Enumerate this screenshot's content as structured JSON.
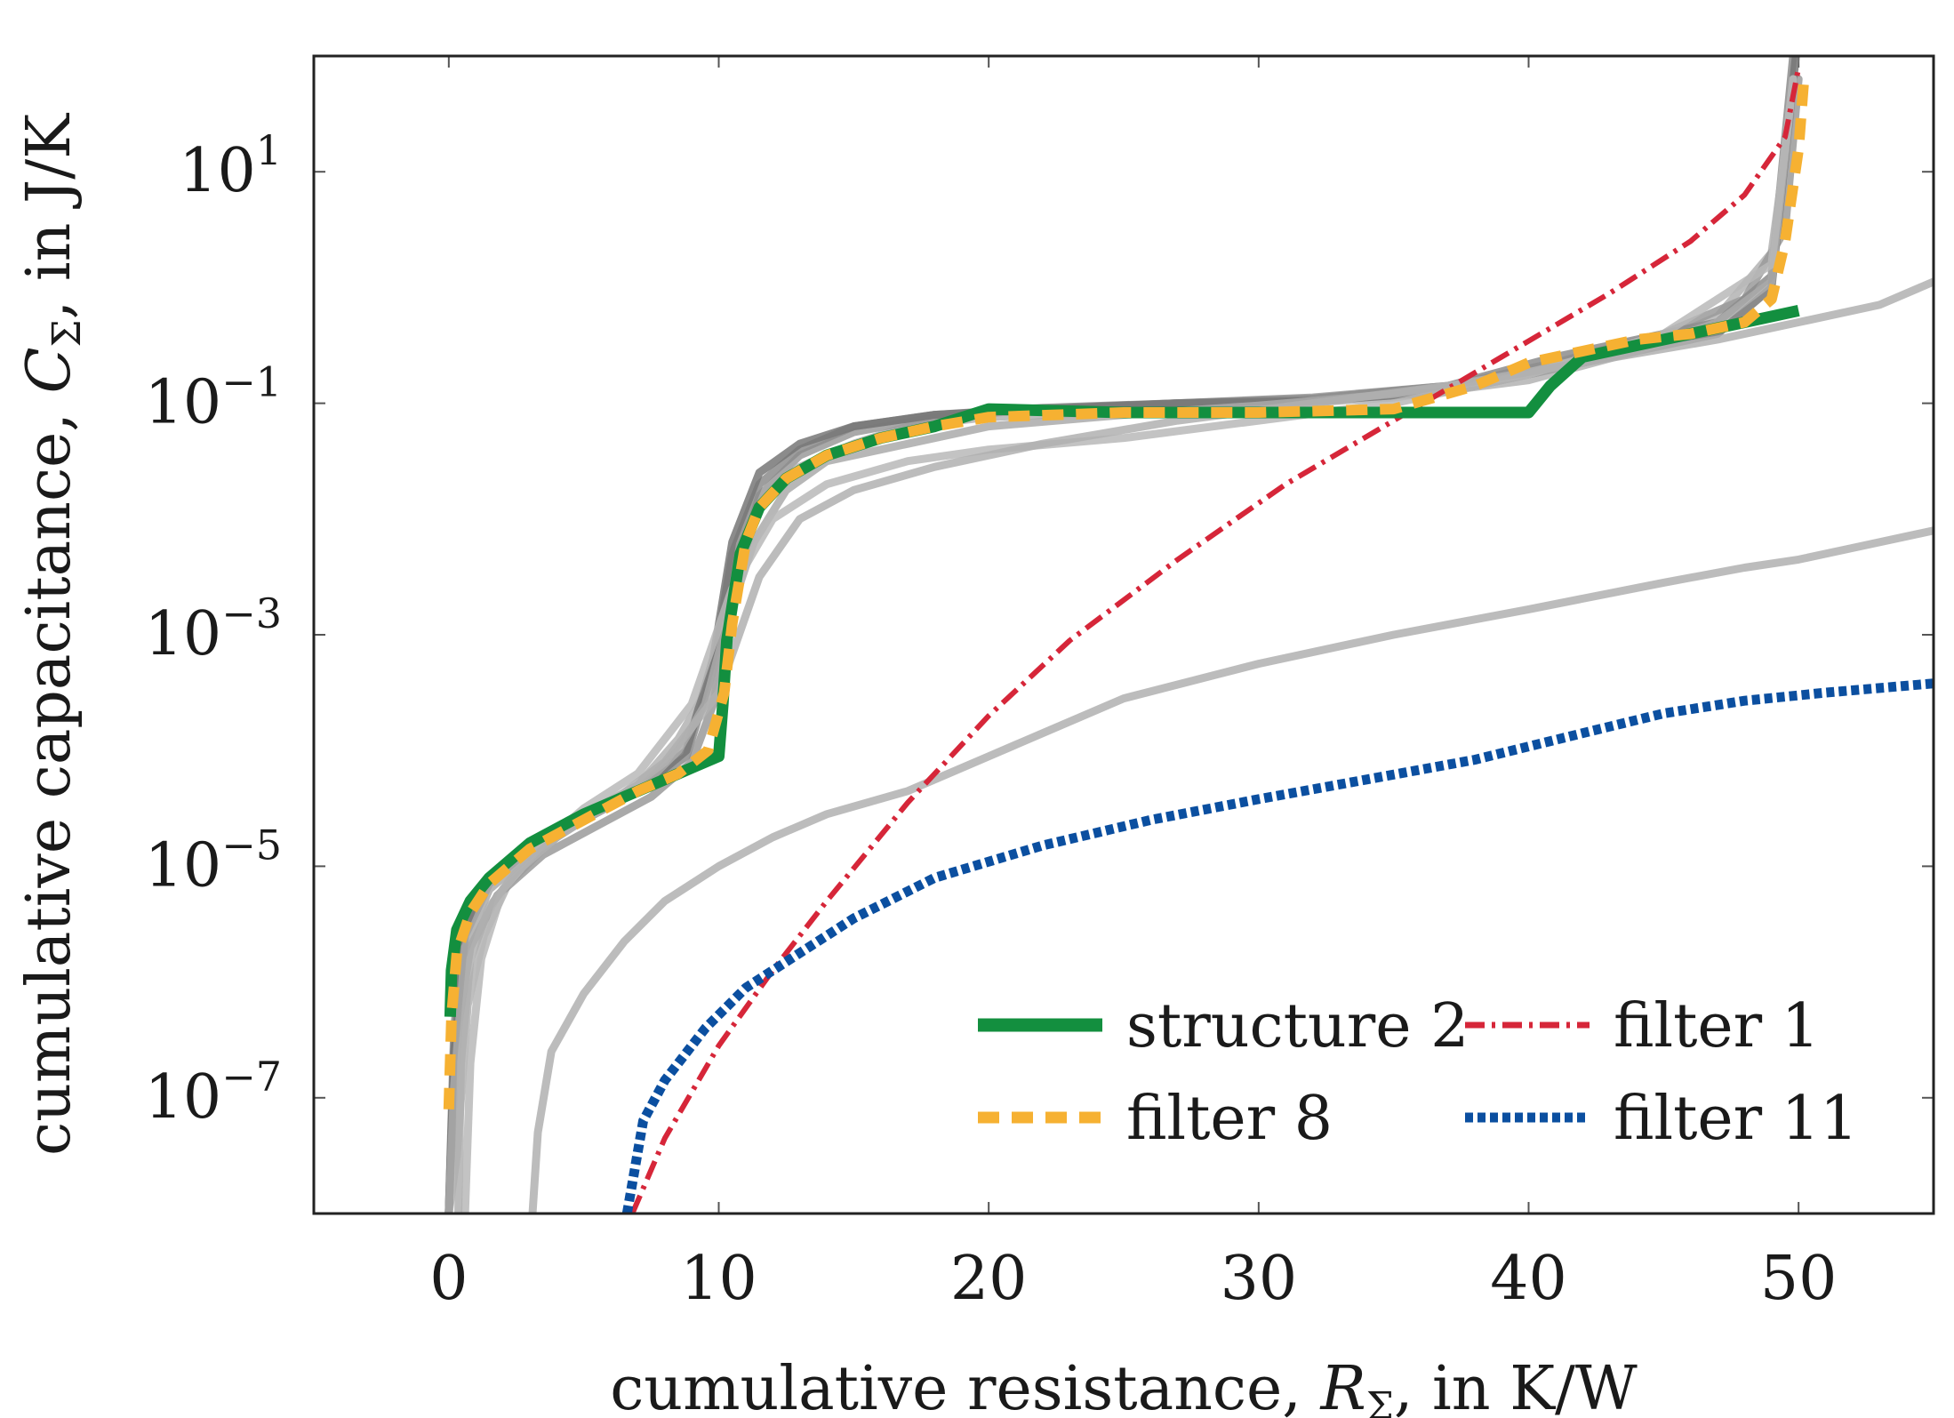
{
  "chart_data": {
    "type": "line",
    "title": "",
    "xlabel": "cumulative resistance, R_Σ, in K/W",
    "ylabel": "cumulative capacitance, C_Σ, in J/K",
    "xlabel_parts": {
      "pre": "cumulative resistance, ",
      "sym": "R",
      "sub": "Σ",
      "post": ", in K/W"
    },
    "ylabel_parts": {
      "pre": "cumulative capacitance, ",
      "sym": "C",
      "sub": "Σ",
      "post": ", in J/K"
    },
    "x_scale": "linear",
    "y_scale": "log",
    "xlim": [
      -5,
      55
    ],
    "ylim_log10": [
      -8,
      2
    ],
    "x_ticks": [
      0,
      10,
      20,
      30,
      40,
      50
    ],
    "x_tick_labels": [
      "0",
      "10",
      "20",
      "30",
      "40",
      "50"
    ],
    "y_ticks_log10": [
      -7,
      -5,
      -3,
      -1,
      1
    ],
    "y_tick_labels": [
      {
        "base": "10",
        "exp": "−7"
      },
      {
        "base": "10",
        "exp": "−5"
      },
      {
        "base": "10",
        "exp": "−3"
      },
      {
        "base": "10",
        "exp": "−1"
      },
      {
        "base": "10",
        "exp": "1"
      }
    ],
    "legend_position": "bottom-right",
    "legend": [
      {
        "label": "structure 2",
        "series": "structure 2"
      },
      {
        "label": "filter 1",
        "series": "filter 1"
      },
      {
        "label": "filter 8",
        "series": "filter 8"
      },
      {
        "label": "filter 11",
        "series": "filter 11"
      }
    ],
    "background_series": [
      {
        "name": "filter ensemble a",
        "color": "#b3b3b3",
        "x": [
          0,
          0.3,
          0.7,
          1.3,
          2.2,
          3.5,
          5,
          7,
          8.5,
          9.5,
          10.5,
          11.5,
          13,
          15,
          17,
          20,
          25,
          30,
          35,
          40,
          44,
          47,
          49,
          49.7
        ],
        "log10_y": [
          -8,
          -7.5,
          -6.2,
          -5.6,
          -5.15,
          -4.85,
          -4.55,
          -4.3,
          -3.9,
          -3.5,
          -2.6,
          -1.9,
          -1.55,
          -1.35,
          -1.2,
          -1.12,
          -1.07,
          -1.02,
          -0.95,
          -0.8,
          -0.55,
          -0.25,
          0.3,
          1.5
        ]
      },
      {
        "name": "filter ensemble b",
        "color": "#9a9a9a",
        "x": [
          0,
          0.2,
          0.8,
          1.8,
          3.5,
          5.5,
          7.5,
          9,
          9.8,
          10.5,
          11.5,
          13,
          15,
          18,
          22,
          27,
          32,
          37,
          41,
          45,
          48,
          49.5,
          50
        ],
        "log10_y": [
          -8,
          -6.6,
          -5.7,
          -5.25,
          -4.9,
          -4.65,
          -4.4,
          -4.1,
          -3.6,
          -2.6,
          -1.8,
          -1.45,
          -1.25,
          -1.12,
          -1.05,
          -1.0,
          -0.95,
          -0.85,
          -0.65,
          -0.4,
          -0.1,
          0.5,
          1.8
        ]
      },
      {
        "name": "filter ensemble c",
        "color": "#8c8c8c",
        "x": [
          0,
          0.2,
          0.6,
          1.5,
          3,
          5,
          7,
          8.8,
          9.8,
          10.5,
          11.5,
          13,
          15,
          18,
          22,
          27,
          32,
          37,
          41,
          44,
          47,
          49,
          49.8
        ],
        "log10_y": [
          -8,
          -6.4,
          -5.55,
          -5.1,
          -4.8,
          -4.55,
          -4.35,
          -4.05,
          -3.3,
          -2.3,
          -1.7,
          -1.4,
          -1.2,
          -1.1,
          -1.04,
          -1.0,
          -0.96,
          -0.85,
          -0.6,
          -0.45,
          -0.3,
          0.1,
          2
        ]
      },
      {
        "name": "filter ensemble d",
        "color": "#777777",
        "x": [
          0,
          0.2,
          0.6,
          1.5,
          3,
          5,
          7,
          8.8,
          9.8,
          10.5,
          11.5,
          13,
          15,
          18,
          22,
          27,
          32,
          37,
          41,
          44,
          47,
          49,
          49.9
        ],
        "log10_y": [
          -8,
          -6.6,
          -5.6,
          -5.15,
          -4.85,
          -4.6,
          -4.35,
          -4.0,
          -3.2,
          -2.2,
          -1.6,
          -1.35,
          -1.2,
          -1.1,
          -1.05,
          -1.0,
          -0.98,
          -0.9,
          -0.7,
          -0.55,
          -0.4,
          0.0,
          2
        ]
      },
      {
        "name": "filter ensemble e",
        "color": "#aaaaaa",
        "x": [
          0,
          0.2,
          0.6,
          1.5,
          3,
          5,
          7,
          8.5,
          9.5,
          10.3,
          11.3,
          12.5,
          14,
          17,
          20,
          25,
          30,
          35,
          40,
          44,
          47,
          49,
          49.8
        ],
        "log10_y": [
          -8,
          -6.9,
          -5.7,
          -5.2,
          -4.9,
          -4.6,
          -4.35,
          -4.0,
          -3.6,
          -2.9,
          -2.2,
          -1.75,
          -1.5,
          -1.35,
          -1.2,
          -1.1,
          -1.02,
          -0.92,
          -0.75,
          -0.55,
          -0.3,
          0.05,
          1.8
        ]
      },
      {
        "name": "filter ensemble f",
        "color": "#b8b8b8",
        "x": [
          0.6,
          0.8,
          1.2,
          2,
          3.5,
          5,
          7,
          9,
          10.5,
          12,
          14,
          17,
          20,
          25,
          30,
          35,
          40,
          45,
          49,
          49.8
        ],
        "log10_y": [
          -8,
          -6.7,
          -5.8,
          -5.2,
          -4.8,
          -4.5,
          -4.2,
          -3.6,
          -2.6,
          -2.0,
          -1.7,
          -1.5,
          -1.4,
          -1.3,
          -1.15,
          -1.0,
          -0.75,
          -0.4,
          0.2,
          1.8
        ]
      },
      {
        "name": "filter ensemble g",
        "color": "#b0b0b0",
        "x": [
          3.1,
          3.3,
          3.8,
          5,
          6.5,
          8,
          10,
          12,
          14,
          17,
          20,
          25,
          30,
          35,
          40,
          45,
          48,
          50,
          52,
          54,
          55
        ],
        "log10_y": [
          -8,
          -7.3,
          -6.6,
          -6.1,
          -5.65,
          -5.3,
          -5.0,
          -4.75,
          -4.55,
          -4.35,
          -4.05,
          -3.55,
          -3.25,
          -3.0,
          -2.78,
          -2.55,
          -2.42,
          -2.35,
          -2.25,
          -2.15,
          -2.1
        ]
      },
      {
        "name": "filter ensemble h",
        "color": "#b0b0b0",
        "x": [
          0.35,
          0.45,
          0.8,
          1.5,
          2.5,
          4,
          6,
          8,
          10,
          11.5,
          13,
          15,
          18,
          22,
          27,
          32,
          37,
          42,
          47,
          50,
          53,
          55
        ],
        "log10_y": [
          -8,
          -6.7,
          -5.8,
          -5.35,
          -5.05,
          -4.75,
          -4.45,
          -4.1,
          -3.5,
          -2.5,
          -2.0,
          -1.75,
          -1.55,
          -1.35,
          -1.15,
          -1.0,
          -0.85,
          -0.65,
          -0.45,
          -0.3,
          -0.15,
          0.05
        ]
      }
    ],
    "series": [
      {
        "name": "filter 1",
        "color": "#d62639",
        "style": "dash-dot",
        "x": [
          6.8,
          8,
          10,
          12,
          14,
          17,
          20,
          23,
          27,
          31,
          35,
          39,
          43,
          46,
          48,
          49.5,
          50
        ],
        "log10_y": [
          -8,
          -7.35,
          -6.55,
          -5.9,
          -5.3,
          -4.45,
          -3.7,
          -3.05,
          -2.35,
          -1.7,
          -1.15,
          -0.6,
          -0.05,
          0.4,
          0.8,
          1.3,
          1.9
        ]
      },
      {
        "name": "filter 11",
        "color": "#0b4fa0",
        "style": "dotted",
        "x": [
          6.6,
          7.2,
          8,
          9.5,
          11,
          13,
          15,
          18,
          22,
          26,
          30,
          34,
          38,
          42,
          45,
          48,
          51,
          55
        ],
        "log10_y": [
          -8,
          -7.2,
          -6.85,
          -6.4,
          -6.05,
          -5.75,
          -5.45,
          -5.1,
          -4.82,
          -4.6,
          -4.42,
          -4.25,
          -4.08,
          -3.85,
          -3.68,
          -3.57,
          -3.5,
          -3.42
        ]
      },
      {
        "name": "structure 2",
        "color": "#138f3f",
        "style": "solid",
        "x": [
          0.05,
          0.1,
          0.3,
          0.8,
          1.5,
          3,
          5,
          7,
          9,
          10,
          10.15,
          10.3,
          10.8,
          11.5,
          12.5,
          14,
          16,
          18,
          20,
          25,
          30,
          35,
          40,
          40.8,
          42,
          45,
          48,
          50
        ],
        "log10_y": [
          -6.3,
          -5.9,
          -5.55,
          -5.3,
          -5.1,
          -4.8,
          -4.55,
          -4.35,
          -4.15,
          -4.05,
          -3.6,
          -3.05,
          -2.3,
          -1.9,
          -1.65,
          -1.45,
          -1.3,
          -1.2,
          -1.05,
          -1.08,
          -1.08,
          -1.08,
          -1.08,
          -0.85,
          -0.6,
          -0.45,
          -0.3,
          -0.2
        ]
      },
      {
        "name": "filter 8",
        "color": "#f6b132",
        "style": "dashed",
        "x": [
          0,
          0.1,
          0.3,
          0.8,
          1.5,
          3,
          5,
          7,
          8.5,
          9.6,
          10.2,
          10.5,
          11,
          11.5,
          12.5,
          14,
          16,
          18,
          20,
          25,
          30,
          35,
          38,
          40,
          42,
          44,
          46,
          48,
          49,
          49.5,
          50,
          50.2
        ],
        "log10_y": [
          -7.1,
          -6.3,
          -5.75,
          -5.4,
          -5.15,
          -4.85,
          -4.6,
          -4.35,
          -4.2,
          -4.0,
          -3.5,
          -2.9,
          -2.2,
          -1.9,
          -1.65,
          -1.45,
          -1.3,
          -1.2,
          -1.12,
          -1.08,
          -1.08,
          -1.05,
          -0.85,
          -0.65,
          -0.55,
          -0.45,
          -0.4,
          -0.3,
          -0.1,
          0.4,
          1.2,
          1.8
        ]
      }
    ]
  }
}
